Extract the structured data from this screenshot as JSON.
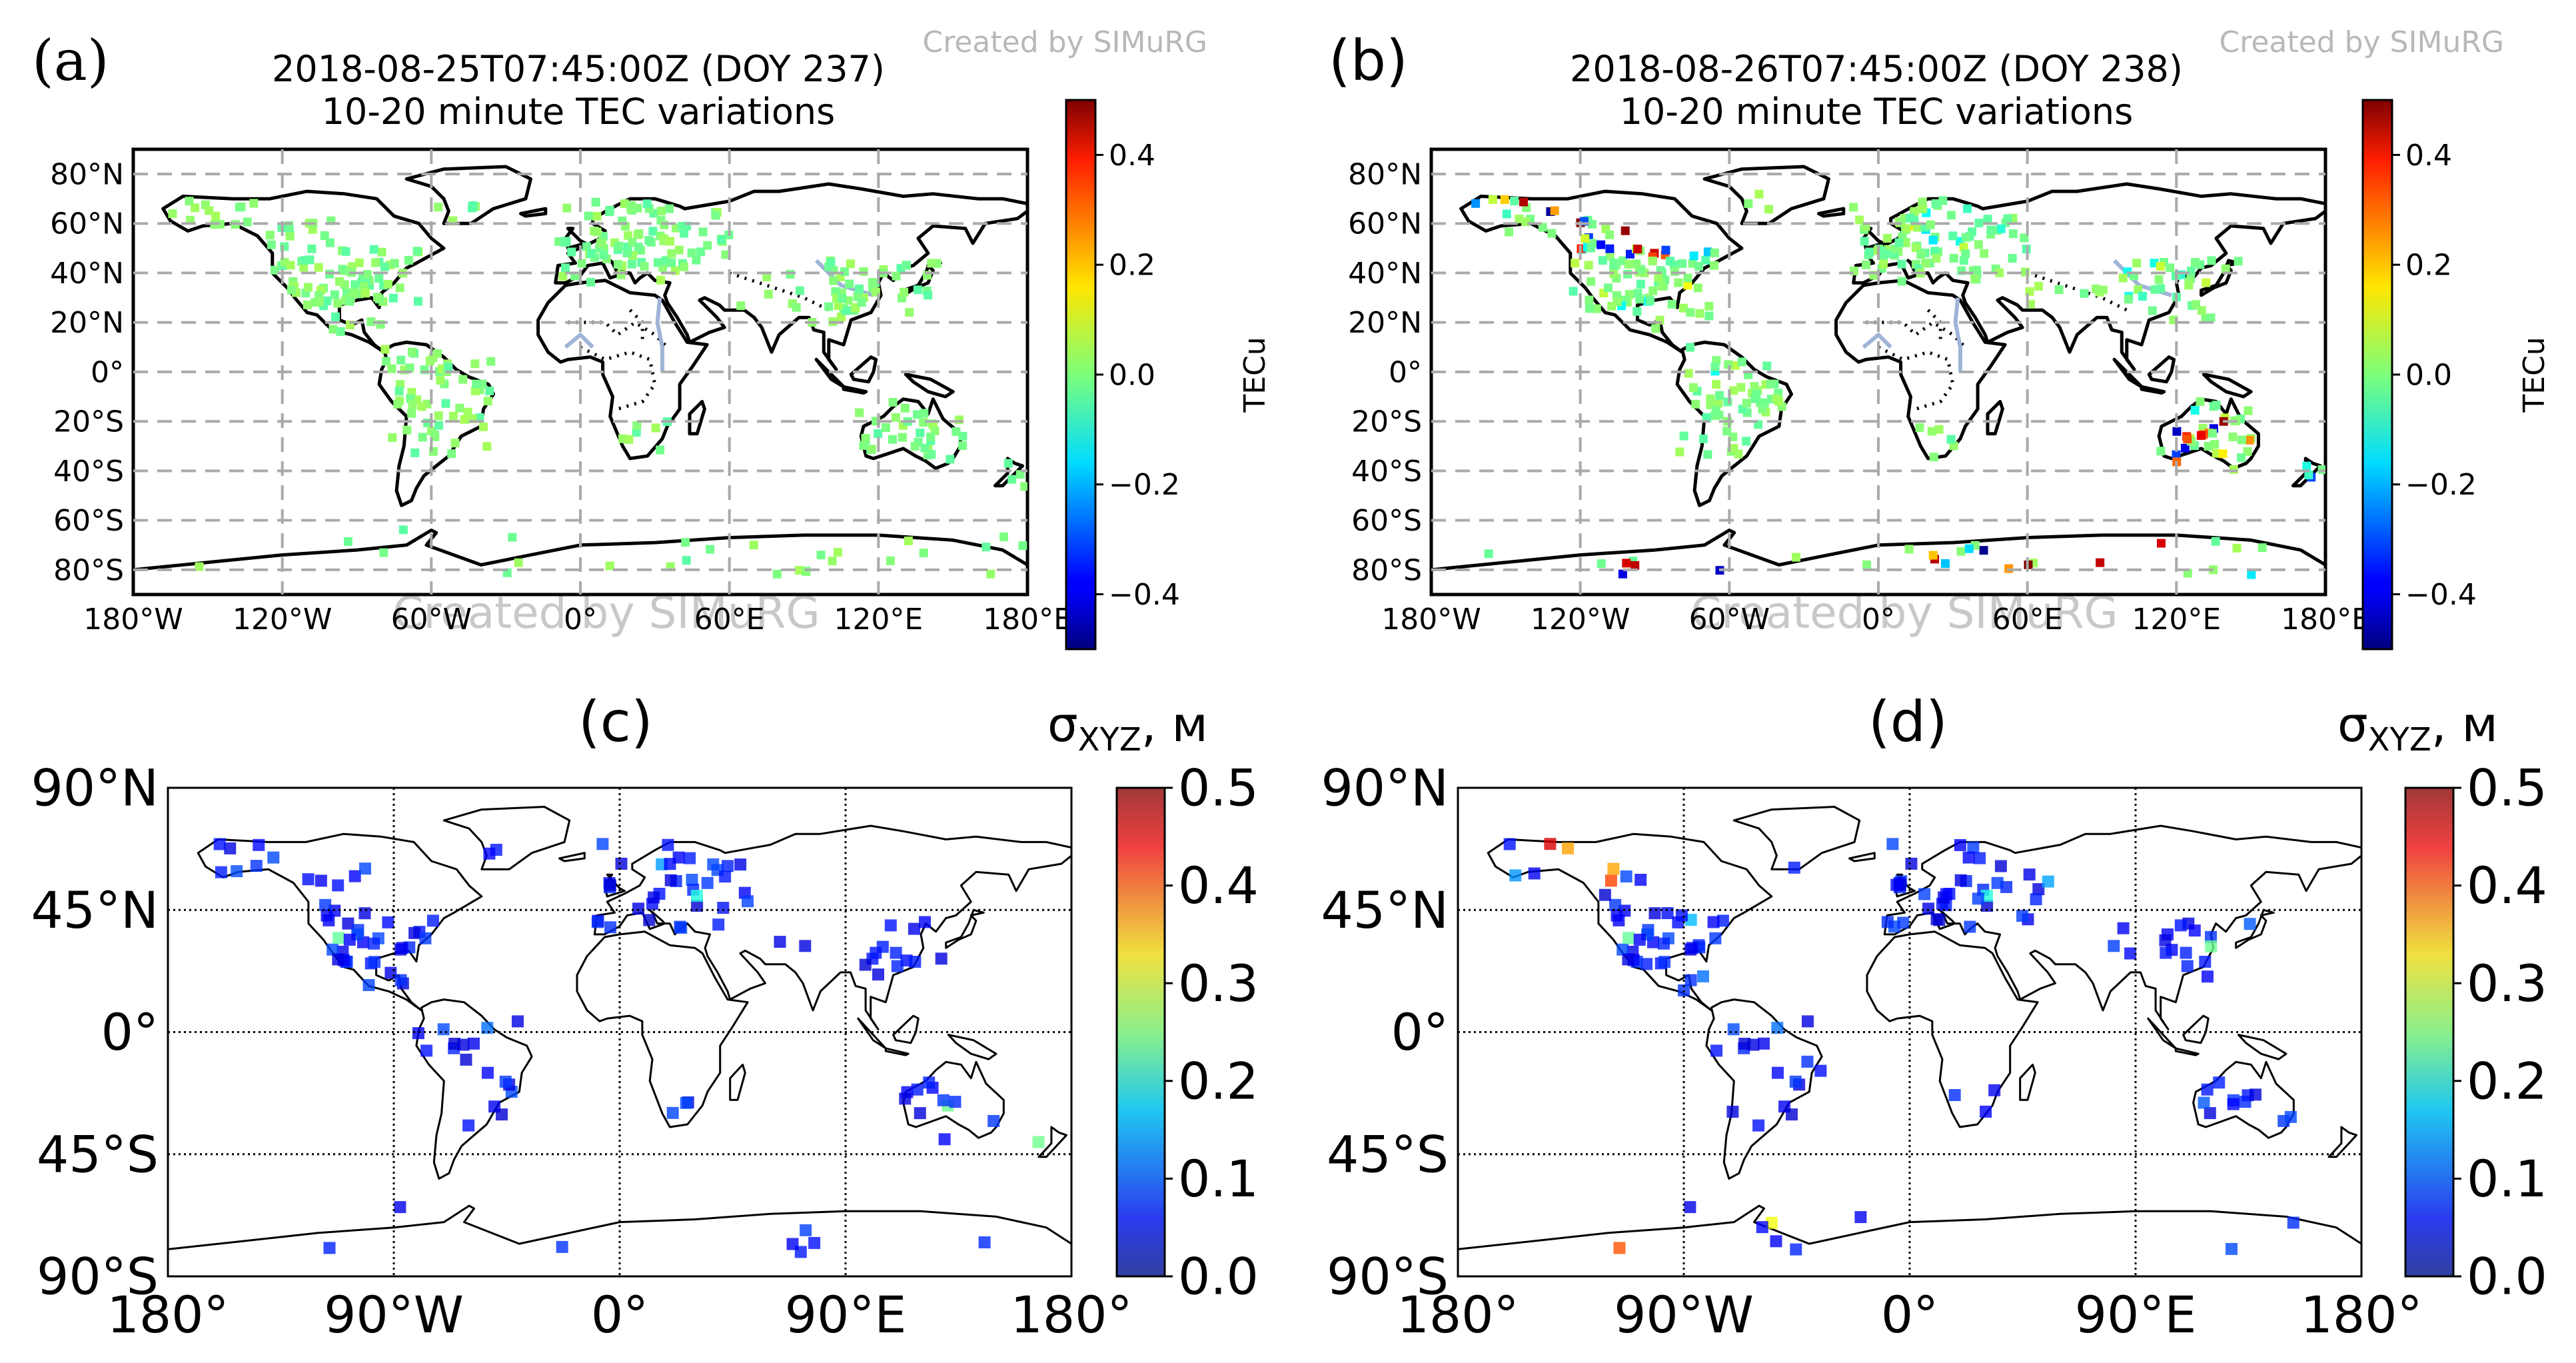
{
  "panels": [
    {
      "letter": "(a)",
      "title_line1": "2018-08-25T07:45:00Z (DOY 237)",
      "title_line2": "10-20 minute TEC variations",
      "watermark": "Created by SIMuRG",
      "lat_labels": [
        "80°N",
        "60°N",
        "40°N",
        "20°N",
        "0°",
        "20°S",
        "40°S",
        "60°S",
        "80°S"
      ],
      "lon_labels": [
        "180°W",
        "120°W",
        "60°W",
        "0°",
        "60°E",
        "120°E",
        "180°E"
      ],
      "colorbar_label": "TECu",
      "colorbar_ticks": [
        "0.4",
        "0.2",
        "0.0",
        "−0.2",
        "−0.4"
      ]
    },
    {
      "letter": "(b)",
      "title_line1": "2018-08-26T07:45:00Z (DOY 238)",
      "title_line2": "10-20 minute TEC variations",
      "watermark": "Created by SIMuRG",
      "lat_labels": [
        "80°N",
        "60°N",
        "40°N",
        "20°N",
        "0°",
        "20°S",
        "40°S",
        "60°S",
        "80°S"
      ],
      "lon_labels": [
        "180°W",
        "120°W",
        "60°W",
        "0°",
        "60°E",
        "120°E",
        "180°E"
      ],
      "colorbar_label": "TECu",
      "colorbar_ticks": [
        "0.4",
        "0.2",
        "0.0",
        "−0.2",
        "−0.4"
      ]
    },
    {
      "letter": "(c)",
      "colorbar_title": "σ",
      "colorbar_title_sub": "XYZ",
      "colorbar_title_unit": ", м",
      "lat_labels": [
        "90°N",
        "45°N",
        "0°",
        "45°S",
        "90°S"
      ],
      "lon_labels": [
        "180°",
        "90°W",
        "0°",
        "90°E",
        "180°"
      ],
      "colorbar_ticks": [
        "0.5",
        "0.4",
        "0.3",
        "0.2",
        "0.1",
        "0.0"
      ]
    },
    {
      "letter": "(d)",
      "colorbar_title": "σ",
      "colorbar_title_sub": "XYZ",
      "colorbar_title_unit": ", м",
      "lat_labels": [
        "90°N",
        "45°N",
        "0°",
        "45°S",
        "90°S"
      ],
      "lon_labels": [
        "180°",
        "90°W",
        "0°",
        "90°E",
        "180°"
      ],
      "colorbar_ticks": [
        "0.5",
        "0.4",
        "0.3",
        "0.2",
        "0.1",
        "0.0"
      ]
    }
  ],
  "map_data": {
    "tec_colormap": "jet",
    "tec_range": [
      -0.5,
      0.5
    ],
    "sigma_colormap": "jet",
    "sigma_range": [
      0.0,
      0.5
    ],
    "colors": {
      "coastline": "#000000",
      "grid_dashed": "#aaaaaa",
      "watermark": "#b0b0b0",
      "background": "#ffffff"
    }
  }
}
